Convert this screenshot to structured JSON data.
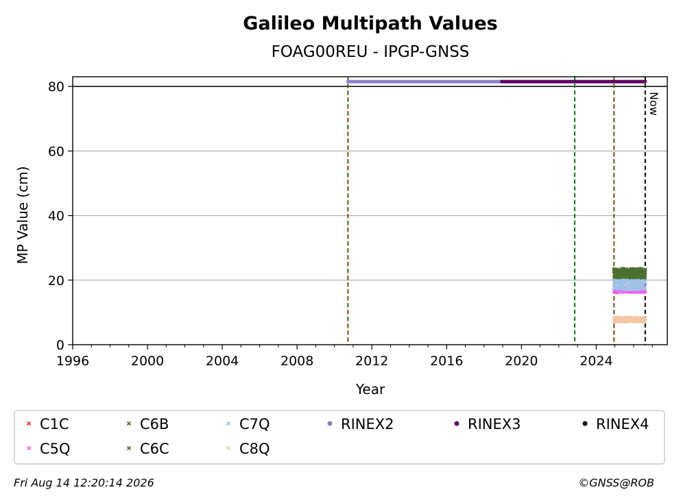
{
  "chart_data": {
    "type": "scatter",
    "title": "Galileo Multipath Values",
    "subtitle": "FOAG00REU - IPGP-GNSS",
    "xlabel": "Year",
    "ylabel": "MP Value (cm)",
    "xlim": [
      1996.0,
      2027.8
    ],
    "ylim": [
      0,
      83
    ],
    "xticks": [
      1996,
      2000,
      2004,
      2008,
      2012,
      2016,
      2020,
      2024
    ],
    "yticks": [
      0,
      20,
      40,
      60,
      80
    ],
    "grid": "y-major",
    "legend_position": "bottom",
    "now_label": "Now",
    "now_x": 2026.62,
    "event_lines": [
      {
        "x": 2010.72,
        "style": "green-dashed"
      },
      {
        "x": 2010.72,
        "style": "red-dotted"
      },
      {
        "x": 2022.85,
        "style": "green-dashed"
      },
      {
        "x": 2024.95,
        "style": "green-dashed"
      },
      {
        "x": 2024.95,
        "style": "red-dotted"
      }
    ],
    "rinex_bars": [
      {
        "name": "RINEX2",
        "from": 2010.72,
        "to": 2018.95,
        "y": 81.5,
        "color": "#8b80c4"
      },
      {
        "name": "RINEX3",
        "from": 2018.95,
        "to": 2026.62,
        "y": 81.5,
        "color": "#5e0060"
      }
    ],
    "series": [
      {
        "name": "C1C",
        "marker": "x",
        "color": "#e8332f",
        "x_range": [
          2024.95,
          2026.62
        ],
        "mean": 22.0,
        "spread": 1.2
      },
      {
        "name": "C5Q",
        "marker": "x",
        "color": "#f25cf2",
        "x_range": [
          2024.95,
          2026.62
        ],
        "mean": 17.0,
        "spread": 0.8
      },
      {
        "name": "C6B",
        "marker": "x",
        "color": "#4c7031",
        "x_range": [
          2024.95,
          2026.62
        ],
        "mean": 22.3,
        "spread": 1.3
      },
      {
        "name": "C6C",
        "marker": "x",
        "color": "#4c7031",
        "x_range": [
          2024.95,
          2026.62
        ],
        "mean": 21.5,
        "spread": 1.2
      },
      {
        "name": "C7Q",
        "marker": "x",
        "color": "#9fc2e8",
        "x_range": [
          2024.95,
          2026.62
        ],
        "mean": 18.5,
        "spread": 1.5
      },
      {
        "name": "C8Q",
        "marker": "x",
        "color": "#f5c6a5",
        "x_range": [
          2024.95,
          2026.62
        ],
        "mean": 7.8,
        "spread": 0.7
      }
    ],
    "legend": [
      {
        "label": "C1C",
        "marker": "x",
        "color": "#e8332f"
      },
      {
        "label": "C6B",
        "marker": "x",
        "color": "#4c7031"
      },
      {
        "label": "C7Q",
        "marker": "x",
        "color": "#9fc2e8"
      },
      {
        "label": "RINEX2",
        "marker": "dot",
        "color": "#8b80c4"
      },
      {
        "label": "RINEX3",
        "marker": "dot",
        "color": "#5e0060"
      },
      {
        "label": "RINEX4",
        "marker": "dot",
        "color": "#1a0020"
      },
      {
        "label": "C5Q",
        "marker": "x",
        "color": "#f25cf2"
      },
      {
        "label": "C6C",
        "marker": "x",
        "color": "#4c7031"
      },
      {
        "label": "C8Q",
        "marker": "x",
        "color": "#f5c6a5"
      }
    ]
  },
  "footer": {
    "timestamp": "Fri Aug 14 12:20:14 2026",
    "credit": "©GNSS@ROB"
  }
}
